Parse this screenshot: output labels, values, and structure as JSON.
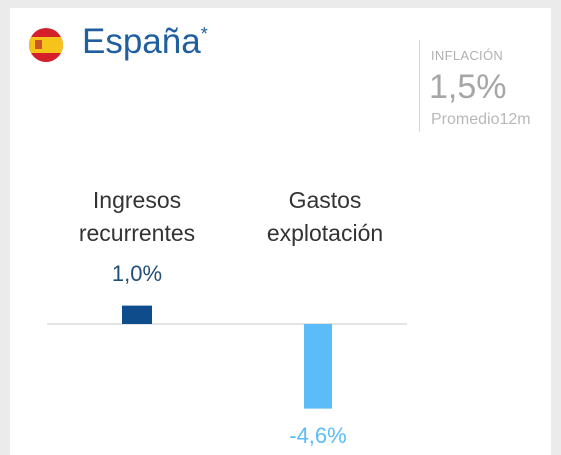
{
  "header": {
    "title": "España",
    "footnote_mark": "*"
  },
  "inflation": {
    "label": "INFLACIÓN",
    "value": "1,5%",
    "note": "Promedio12m"
  },
  "chart_data": {
    "type": "bar",
    "categories": [
      "Ingresos recurrentes",
      "Gastos explotación"
    ],
    "values": [
      1.0,
      -4.6
    ],
    "value_labels": [
      "1,0%",
      "-4,6%"
    ],
    "colors": [
      "#0e4c8b",
      "#5bbcf7"
    ]
  }
}
